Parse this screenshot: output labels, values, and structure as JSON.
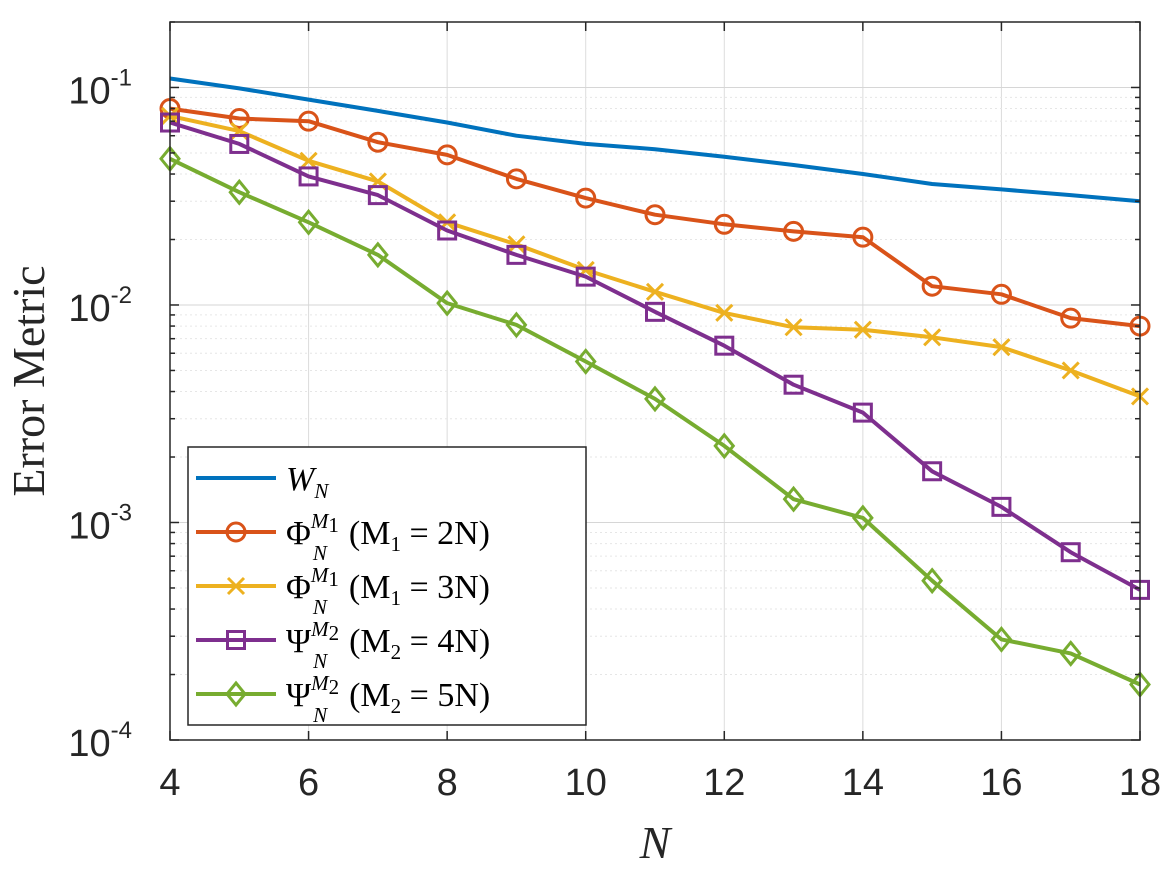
{
  "chart_data": {
    "type": "line",
    "title": "",
    "xlabel": "N",
    "ylabel": "Error Metric",
    "yscale": "log",
    "xlim": [
      4,
      18
    ],
    "ylim": [
      0.0001,
      0.2
    ],
    "grid": true,
    "minor_grid": true,
    "legend_position": "bottom-left",
    "x_ticks": [
      4,
      6,
      8,
      10,
      12,
      14,
      16,
      18
    ],
    "x_tick_labels": [
      "4",
      "6",
      "8",
      "10",
      "12",
      "14",
      "16",
      "18"
    ],
    "y_ticks": [
      {
        "value": 0.1,
        "base": "10",
        "exp": "-1"
      },
      {
        "value": 0.01,
        "base": "10",
        "exp": "-2"
      },
      {
        "value": 0.001,
        "base": "10",
        "exp": "-3"
      },
      {
        "value": 0.0001,
        "base": "10",
        "exp": "-4"
      }
    ],
    "series": [
      {
        "name": "W_N",
        "legend": {
          "sym": "W",
          "sub": "N",
          "sup": "",
          "paren": ""
        },
        "color": "#0072BD",
        "marker": "none",
        "x": [
          4,
          5,
          6,
          7,
          8,
          9,
          10,
          11,
          12,
          13,
          14,
          15,
          16,
          17,
          18
        ],
        "values": [
          0.11,
          0.099,
          0.088,
          0.078,
          0.069,
          0.06,
          0.055,
          0.052,
          0.048,
          0.044,
          0.04,
          0.036,
          0.034,
          0.032,
          0.03
        ]
      },
      {
        "name": "Phi_N^{M1} (M1 = 2N)",
        "legend": {
          "sym": "Φ",
          "sub": "N",
          "sup": "M",
          "supsub": "1",
          "paren": "(M",
          "parensub": "1",
          "paren_tail": " = 2N)"
        },
        "color": "#D95319",
        "marker": "circle",
        "x": [
          4,
          5,
          6,
          7,
          8,
          9,
          10,
          11,
          12,
          13,
          14,
          15,
          16,
          17,
          18
        ],
        "values": [
          0.08,
          0.072,
          0.07,
          0.056,
          0.049,
          0.038,
          0.031,
          0.026,
          0.0235,
          0.0218,
          0.0205,
          0.0122,
          0.0112,
          0.0087,
          0.008
        ]
      },
      {
        "name": "Phi_N^{M1} (M1 = 3N)",
        "legend": {
          "sym": "Φ",
          "sub": "N",
          "sup": "M",
          "supsub": "1",
          "paren": "(M",
          "parensub": "1",
          "paren_tail": " = 3N)"
        },
        "color": "#EDB120",
        "marker": "x",
        "x": [
          4,
          5,
          6,
          7,
          8,
          9,
          10,
          11,
          12,
          13,
          14,
          15,
          16,
          17,
          18
        ],
        "values": [
          0.074,
          0.063,
          0.046,
          0.037,
          0.024,
          0.019,
          0.0145,
          0.0115,
          0.0092,
          0.0079,
          0.0077,
          0.0071,
          0.0064,
          0.005,
          0.0038
        ]
      },
      {
        "name": "Psi_N^{M2} (M2 = 4N)",
        "legend": {
          "sym": "Ψ",
          "sub": "N",
          "sup": "M",
          "supsub": "2",
          "paren": "(M",
          "parensub": "2",
          "paren_tail": " = 4N)"
        },
        "color": "#7E2F8E",
        "marker": "square",
        "x": [
          4,
          5,
          6,
          7,
          8,
          9,
          10,
          11,
          12,
          13,
          14,
          15,
          16,
          17,
          18
        ],
        "values": [
          0.069,
          0.055,
          0.039,
          0.032,
          0.022,
          0.017,
          0.0135,
          0.0093,
          0.0065,
          0.0043,
          0.0032,
          0.00172,
          0.00118,
          0.00073,
          0.00049
        ]
      },
      {
        "name": "Psi_N^{M2} (M2 = 5N)",
        "legend": {
          "sym": "Ψ",
          "sub": "N",
          "sup": "M",
          "supsub": "2",
          "paren": "(M",
          "parensub": "2",
          "paren_tail": " = 5N)"
        },
        "color": "#77AC30",
        "marker": "diamond",
        "x": [
          4,
          5,
          6,
          7,
          8,
          9,
          10,
          11,
          12,
          13,
          14,
          15,
          16,
          17,
          18
        ],
        "values": [
          0.047,
          0.033,
          0.024,
          0.017,
          0.0102,
          0.0081,
          0.0055,
          0.0037,
          0.00225,
          0.00128,
          0.00105,
          0.00054,
          0.00029,
          0.00025,
          0.00018
        ]
      }
    ]
  }
}
